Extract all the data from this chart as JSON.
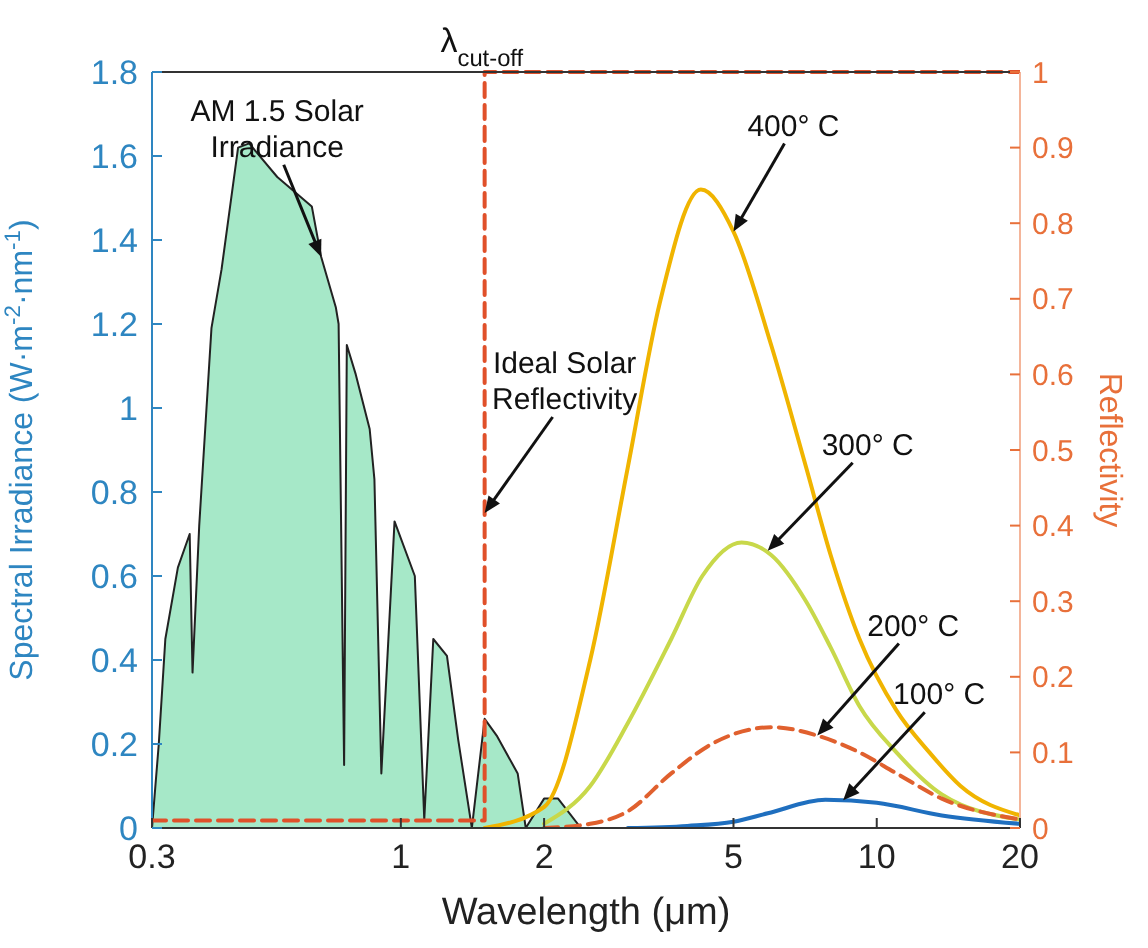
{
  "chart_data": {
    "type": "area",
    "xlabel": "Wavelength (μm)",
    "ylabel": "Spectral Irradiance (W·m$^{-2}$·nm$^{-1}$)",
    "y2label": "Reflectivity",
    "log": "x",
    "xlim": [
      0.3,
      20
    ],
    "xticks": [
      0.3,
      1,
      2,
      5,
      10,
      20
    ],
    "ylim": [
      0,
      1.8
    ],
    "yticks": [
      0,
      0.2,
      0.4,
      0.6,
      0.8,
      1,
      1.2,
      1.4,
      1.6,
      1.8
    ],
    "y2lim": [
      0,
      1
    ],
    "y2ticks": [
      0,
      0.1,
      0.2,
      0.3,
      0.4,
      0.5,
      0.6,
      0.7,
      0.8,
      0.9,
      1
    ],
    "grid": false,
    "series": [
      {
        "color": "#a6e8c8",
        "x": [
          0.3,
          0.31,
          0.32,
          0.34,
          0.36,
          0.365,
          0.377,
          0.4,
          0.42,
          0.455,
          0.48,
          0.55,
          0.65,
          0.68,
          0.73,
          0.74,
          0.76,
          0.77,
          0.804,
          0.86,
          0.88,
          0.91,
          0.97,
          1.07,
          1.12,
          1.17,
          1.25,
          1.32,
          1.41,
          1.5,
          1.59,
          1.76,
          1.83,
          2.0,
          2.14,
          2.39
        ],
        "values": [
          0,
          0.2,
          0.45,
          0.62,
          0.7,
          0.37,
          0.72,
          1.19,
          1.33,
          1.62,
          1.63,
          1.55,
          1.48,
          1.36,
          1.24,
          1.2,
          0.15,
          1.15,
          1.08,
          0.95,
          0.83,
          0.13,
          0.73,
          0.6,
          0.02,
          0.45,
          0.41,
          0.21,
          0,
          0.26,
          0.22,
          0.13,
          0,
          0.07,
          0.07,
          0
        ]
      },
      {
        "type": "line",
        "axis": "y2",
        "color": "#e0502a",
        "line_style": "dashed",
        "x": [
          0.3,
          1.5,
          1.5,
          20
        ],
        "values": [
          0.01,
          0.01,
          1,
          1
        ]
      },
      {
        "type": "line",
        "color": "#f0b400",
        "line_style": "solid",
        "x": [
          1.5,
          2,
          2.5,
          3,
          3.5,
          4.27,
          5,
          6,
          7.1,
          8,
          9.2,
          11,
          12.9,
          15,
          20
        ],
        "values": [
          0,
          0.05,
          0.4,
          0.86,
          1.25,
          1.52,
          1.42,
          1.15,
          0.86,
          0.65,
          0.45,
          0.28,
          0.18,
          0.1,
          0.03
        ]
      },
      {
        "type": "line",
        "color": "#c8d84a",
        "line_style": "solid",
        "x": [
          2,
          2.5,
          3,
          3.7,
          4.3,
          5.2,
          6,
          7.1,
          8,
          9.2,
          11,
          13.7,
          20
        ],
        "values": [
          0.01,
          0.1,
          0.25,
          0.45,
          0.6,
          0.68,
          0.65,
          0.54,
          0.43,
          0.29,
          0.18,
          0.08,
          0.02
        ]
      },
      {
        "type": "line",
        "color": "#e0602e",
        "line_style": "dashed",
        "x": [
          2,
          2.5,
          3,
          3.7,
          4.5,
          6.05,
          7.5,
          9.2,
          11,
          13.7,
          20
        ],
        "values": [
          0,
          0.01,
          0.04,
          0.13,
          0.2,
          0.24,
          0.22,
          0.18,
          0.13,
          0.07,
          0.02
        ]
      },
      {
        "type": "line",
        "color": "#1f6fbf",
        "line_style": "solid",
        "x": [
          3,
          4,
          5,
          5.9,
          7.8,
          10,
          13.7,
          20
        ],
        "values": [
          0,
          0.005,
          0.015,
          0.035,
          0.067,
          0.06,
          0.03,
          0.01
        ]
      }
    ],
    "annotations": [
      {
        "text": "AM 1.5 Solar Irradiance",
        "x": 0.68,
        "y": 1.36
      },
      {
        "text": "Ideal Solar Reflectivity",
        "x": 1.5,
        "y": 0.75
      },
      {
        "text": "400° C",
        "x": 5,
        "y": 1.42
      },
      {
        "text": "300° C",
        "x": 5.9,
        "y": 0.66
      },
      {
        "text": "200° C",
        "x": 7.5,
        "y": 0.22
      },
      {
        "text": "100° C",
        "x": 8.5,
        "y": 0.066
      },
      "λ$_{cut-off}$"
    ]
  }
}
